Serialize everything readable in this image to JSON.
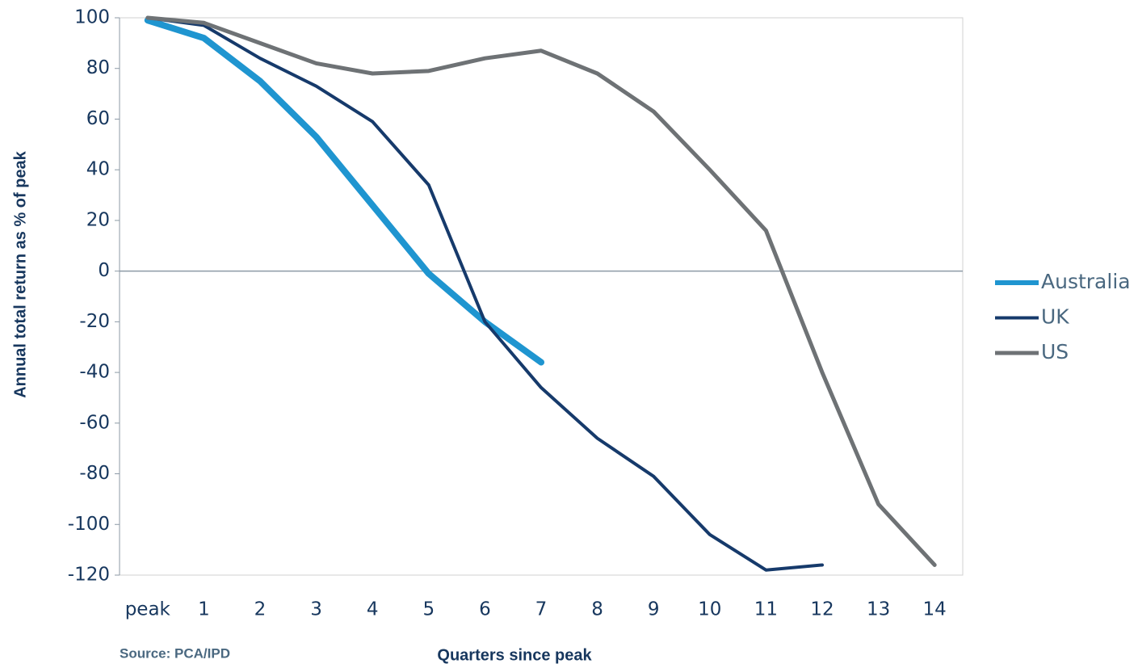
{
  "chart_data": {
    "type": "line",
    "y_label": "Annual total return as % of peak",
    "x_label": "Quarters since peak",
    "source": "Source: PCA/IPD",
    "categories": [
      "peak",
      "1",
      "2",
      "3",
      "4",
      "5",
      "6",
      "7",
      "8",
      "9",
      "10",
      "11",
      "12",
      "13",
      "14"
    ],
    "series": [
      {
        "name": "Australia",
        "color": "#1f95d0",
        "width": 8,
        "values": [
          99,
          92,
          75,
          53,
          26,
          -1,
          -20,
          -36,
          null,
          null,
          null,
          null,
          null,
          null,
          null
        ]
      },
      {
        "name": "UK",
        "color": "#163a6b",
        "width": 4,
        "values": [
          100,
          97,
          84,
          73,
          59,
          34,
          -20,
          -46,
          -66,
          -81,
          -104,
          -118,
          -116,
          null,
          null
        ]
      },
      {
        "name": "US",
        "color": "#6e7275",
        "width": 5,
        "values": [
          100,
          98,
          90,
          82,
          78,
          79,
          84,
          87,
          78,
          63,
          40,
          16,
          -40,
          -92,
          -116
        ]
      }
    ],
    "ylim": [
      -120,
      100
    ],
    "yticks": [
      -120,
      -100,
      -80,
      -60,
      -40,
      -20,
      0,
      20,
      40,
      60,
      80,
      100
    ],
    "zero_line": true,
    "legend": "right"
  }
}
